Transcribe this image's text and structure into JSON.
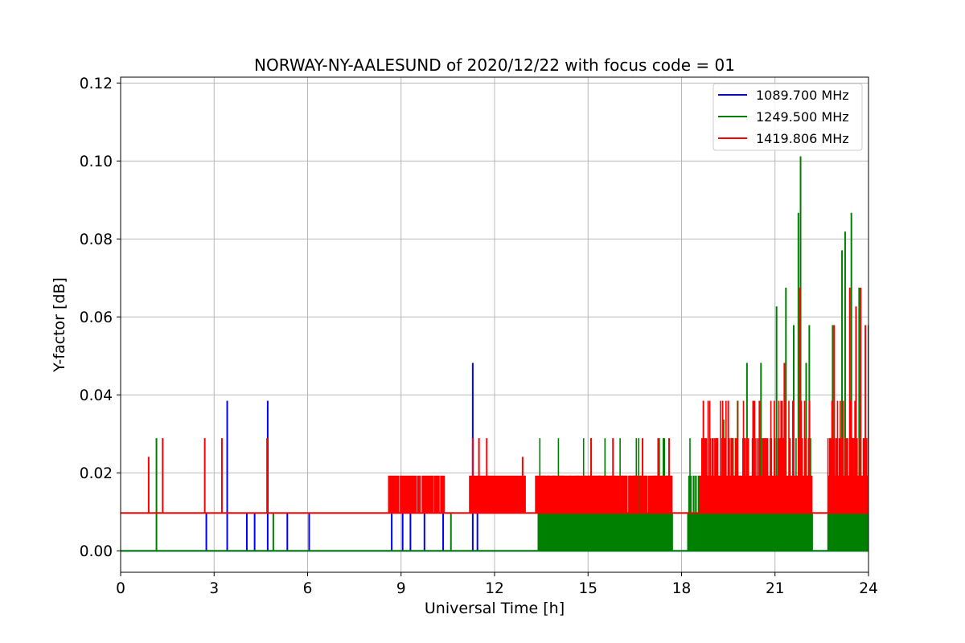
{
  "chart_data": {
    "type": "line",
    "title": "NORWAY-NY-AALESUND of 2020/12/22 with focus code = 01",
    "xlabel": "Universal Time [h]",
    "ylabel": "Y-factor [dB]",
    "xlim": [
      0,
      24
    ],
    "ylim": [
      -0.0055,
      0.1215
    ],
    "xticks": [
      0,
      3,
      6,
      9,
      12,
      15,
      18,
      21,
      24
    ],
    "yticks": [
      0.0,
      0.02,
      0.04,
      0.06,
      0.08,
      0.1,
      0.12
    ],
    "xtick_labels": [
      "0",
      "3",
      "6",
      "9",
      "12",
      "15",
      "18",
      "21",
      "24"
    ],
    "ytick_labels": [
      "0.00",
      "0.02",
      "0.04",
      "0.06",
      "0.08",
      "0.10",
      "0.12"
    ],
    "grid": true,
    "legend_position": "top-right",
    "series": [
      {
        "name": "1089.700 MHz",
        "color": "#0000ff",
        "baseline": 0.0,
        "spikes": [
          [
            2.75,
            0.0097
          ],
          [
            3.42,
            0.0385
          ],
          [
            4.05,
            0.0097
          ],
          [
            4.3,
            0.0097
          ],
          [
            4.72,
            0.0385
          ],
          [
            5.35,
            0.0097
          ],
          [
            6.05,
            0.0097
          ],
          [
            8.7,
            0.0097
          ],
          [
            9.05,
            0.0097
          ],
          [
            9.3,
            0.0097
          ],
          [
            9.75,
            0.0097
          ],
          [
            10.35,
            0.0097
          ],
          [
            11.3,
            0.0482
          ],
          [
            11.45,
            0.0097
          ]
        ]
      },
      {
        "name": "1249.500 MHz",
        "color": "#008000",
        "baseline": 0.0,
        "spikes": [
          [
            1.15,
            0.0289
          ],
          [
            4.9,
            0.0097
          ],
          [
            10.6,
            0.0097
          ],
          [
            17.7,
            0.0097
          ],
          [
            19.35,
            0.0337
          ],
          [
            19.8,
            0.0385
          ],
          [
            20.1,
            0.0482
          ],
          [
            20.55,
            0.0482
          ],
          [
            21.05,
            0.0627
          ],
          [
            21.35,
            0.0675
          ],
          [
            21.6,
            0.0579
          ],
          [
            21.75,
            0.0867
          ],
          [
            21.82,
            0.1012
          ],
          [
            22.0,
            0.0482
          ],
          [
            22.1,
            0.0579
          ],
          [
            22.85,
            0.0579
          ],
          [
            23.15,
            0.0771
          ],
          [
            23.25,
            0.0819
          ],
          [
            23.45,
            0.0867
          ],
          [
            23.7,
            0.0675
          ]
        ],
        "dense_region_hours": [
          [
            13.4,
            17.7
          ],
          [
            18.2,
            22.2
          ],
          [
            22.7,
            24.0
          ]
        ]
      },
      {
        "name": "1419.806 MHz",
        "color": "#ff0000",
        "baseline": 0.0097,
        "spikes": [
          [
            0.9,
            0.0241
          ],
          [
            1.35,
            0.0289
          ],
          [
            2.7,
            0.0289
          ],
          [
            3.25,
            0.0289
          ],
          [
            4.7,
            0.0289
          ],
          [
            11.3,
            0.0289
          ],
          [
            11.5,
            0.0289
          ],
          [
            11.75,
            0.0289
          ],
          [
            12.9,
            0.0241
          ],
          [
            15.1,
            0.0289
          ],
          [
            15.8,
            0.0289
          ],
          [
            16.75,
            0.0289
          ],
          [
            17.25,
            0.0289
          ],
          [
            17.6,
            0.0289
          ],
          [
            18.7,
            0.0385
          ],
          [
            19.5,
            0.0385
          ],
          [
            20.5,
            0.0385
          ],
          [
            21.3,
            0.0482
          ],
          [
            21.8,
            0.0675
          ],
          [
            22.9,
            0.0579
          ],
          [
            23.4,
            0.0675
          ],
          [
            23.6,
            0.0627
          ],
          [
            23.75,
            0.0675
          ],
          [
            23.9,
            0.0579
          ],
          [
            24.0,
            0.0579
          ]
        ],
        "dense_region_hours": [
          [
            8.6,
            10.4
          ],
          [
            11.2,
            13.0
          ],
          [
            13.3,
            17.7
          ],
          [
            18.6,
            22.2
          ],
          [
            22.7,
            24.0
          ]
        ]
      }
    ]
  }
}
